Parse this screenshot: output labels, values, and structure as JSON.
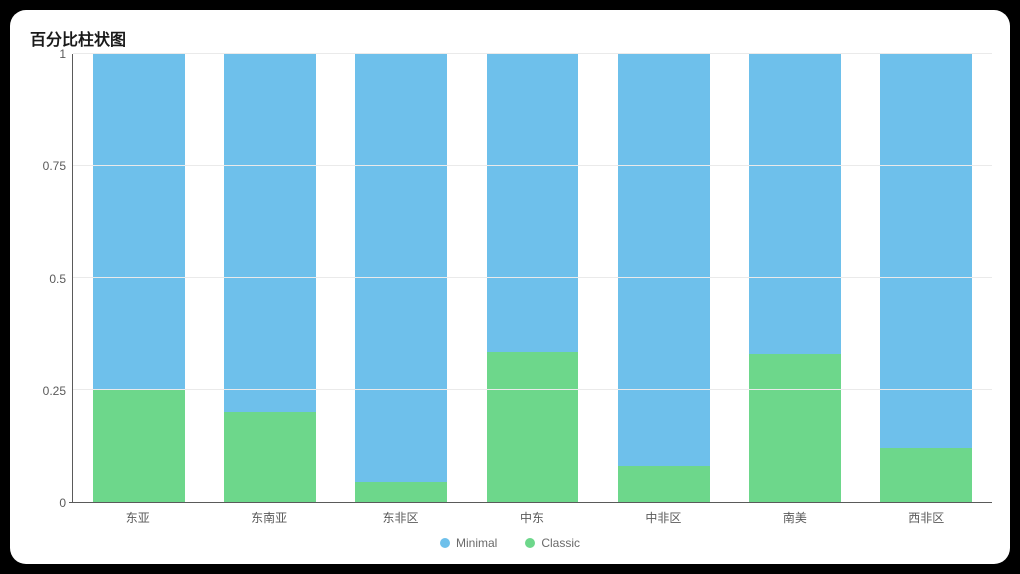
{
  "title": "百分比柱状图",
  "chart": {
    "type": "stacked-bar-percent",
    "background_color": "#ffffff",
    "grid_color": "#eaeaea",
    "axis_color": "#5a5a5a",
    "label_color": "#5a5a5a",
    "title_fontsize": 16,
    "label_fontsize": 12,
    "bar_width_pct": 70,
    "ylim": [
      0,
      1
    ],
    "yticks": [
      1,
      0.75,
      0.5,
      0.25,
      0
    ],
    "ytick_labels": [
      "1",
      "0.75",
      "0.5",
      "0.25",
      "0"
    ],
    "categories": [
      "东亚",
      "东南亚",
      "东非区",
      "中东",
      "中非区",
      "南美",
      "西非区"
    ],
    "series": [
      {
        "name": "Minimal",
        "color": "#6ec0eb"
      },
      {
        "name": "Classic",
        "color": "#6dd78b"
      }
    ],
    "stacks": [
      {
        "Minimal": 0.75,
        "Classic": 0.25
      },
      {
        "Minimal": 0.8,
        "Classic": 0.2
      },
      {
        "Minimal": 0.955,
        "Classic": 0.045
      },
      {
        "Minimal": 0.665,
        "Classic": 0.335
      },
      {
        "Minimal": 0.92,
        "Classic": 0.08
      },
      {
        "Minimal": 0.67,
        "Classic": 0.33
      },
      {
        "Minimal": 0.88,
        "Classic": 0.12
      }
    ]
  },
  "legend": {
    "items": [
      {
        "label": "Minimal",
        "color": "#6ec0eb"
      },
      {
        "label": "Classic",
        "color": "#6dd78b"
      }
    ]
  }
}
